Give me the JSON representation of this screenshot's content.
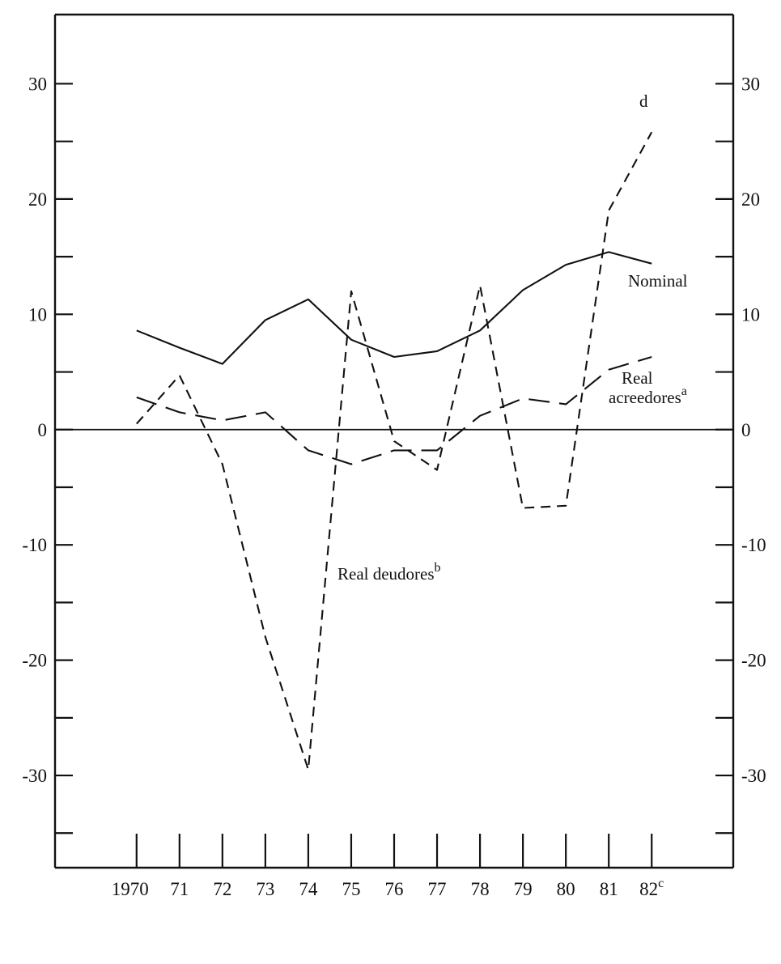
{
  "chart_data": {
    "type": "line",
    "title": "",
    "xlabel": "",
    "ylabel": "",
    "x_tick_labels": [
      "1970",
      "71",
      "72",
      "73",
      "74",
      "75",
      "76",
      "77",
      "78",
      "79",
      "80",
      "81",
      "82"
    ],
    "x_tick_last_suffix": "c",
    "x_values": [
      1970,
      1971,
      1972,
      1973,
      1974,
      1975,
      1976,
      1977,
      1978,
      1979,
      1980,
      1981,
      1982
    ],
    "y_ticks": [
      30,
      20,
      10,
      0,
      -10,
      -20,
      -30
    ],
    "y_tick_labels": [
      "30",
      "20",
      "10",
      "0",
      "-10",
      "-20",
      "-30"
    ],
    "y_minor_ticks": [
      25,
      15,
      5,
      -5,
      -15,
      -25,
      -35
    ],
    "ylim": [
      -38,
      36
    ],
    "xlim": [
      1968.1,
      1983.9
    ],
    "grid": false,
    "zero_line": true,
    "series": [
      {
        "name": "Nominal",
        "style": "solid",
        "values": [
          8.6,
          7.1,
          5.7,
          9.5,
          11.3,
          7.8,
          6.3,
          6.8,
          8.6,
          12.1,
          14.3,
          15.4,
          14.4
        ]
      },
      {
        "name": "Real acreedores",
        "name_lines": [
          "Real",
          "acreedores"
        ],
        "superscript": "a",
        "style": "long-dash",
        "values": [
          2.8,
          1.5,
          0.8,
          1.5,
          -1.8,
          -3.0,
          -1.8,
          -1.8,
          1.2,
          2.7,
          2.2,
          5.2,
          6.3
        ]
      },
      {
        "name": "Real deudores",
        "superscript": "b",
        "style": "short-dash",
        "values": [
          0.5,
          4.7,
          -3.0,
          -18.0,
          -29.5,
          12.0,
          -1.0,
          -3.5,
          12.5,
          -6.8,
          -6.6,
          19.0,
          25.8
        ]
      }
    ],
    "annotations": [
      {
        "text": "d",
        "near_series": "Real deudores",
        "position": "end"
      }
    ]
  }
}
